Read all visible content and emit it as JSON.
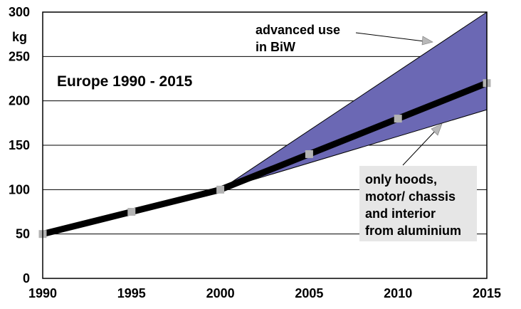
{
  "chart_data": {
    "type": "line",
    "title": "Europe 1990 - 2015",
    "ylabel": "kg",
    "xlabel": "",
    "x": [
      1990,
      1995,
      2000,
      2005,
      2010,
      2015
    ],
    "xlim": [
      1990,
      2015
    ],
    "ylim": [
      0,
      300
    ],
    "x_ticks": [
      "1990",
      "1995",
      "2000",
      "2005",
      "2010",
      "2015"
    ],
    "y_ticks": [
      "0",
      "50",
      "100",
      "150",
      "200",
      "250",
      "300"
    ],
    "grid": "horizontal",
    "series": [
      {
        "values": [
          50,
          75,
          100,
          140,
          180,
          220
        ],
        "style": "thick black line with grey square markers",
        "line_color": "#000000",
        "marker_color": "#b3b3b3"
      }
    ],
    "band": {
      "x": [
        2000,
        2015
      ],
      "upper": [
        100,
        300
      ],
      "lower": [
        100,
        190
      ],
      "color": "#6b68b4"
    },
    "annotations": [
      {
        "label": "upper",
        "lines": [
          "advanced use",
          "in BiW"
        ]
      },
      {
        "label": "lower",
        "lines": [
          "only hoods,",
          "motor/ chassis",
          "and interior",
          "from aluminium"
        ],
        "box_color": "#e6e6e6"
      }
    ]
  }
}
